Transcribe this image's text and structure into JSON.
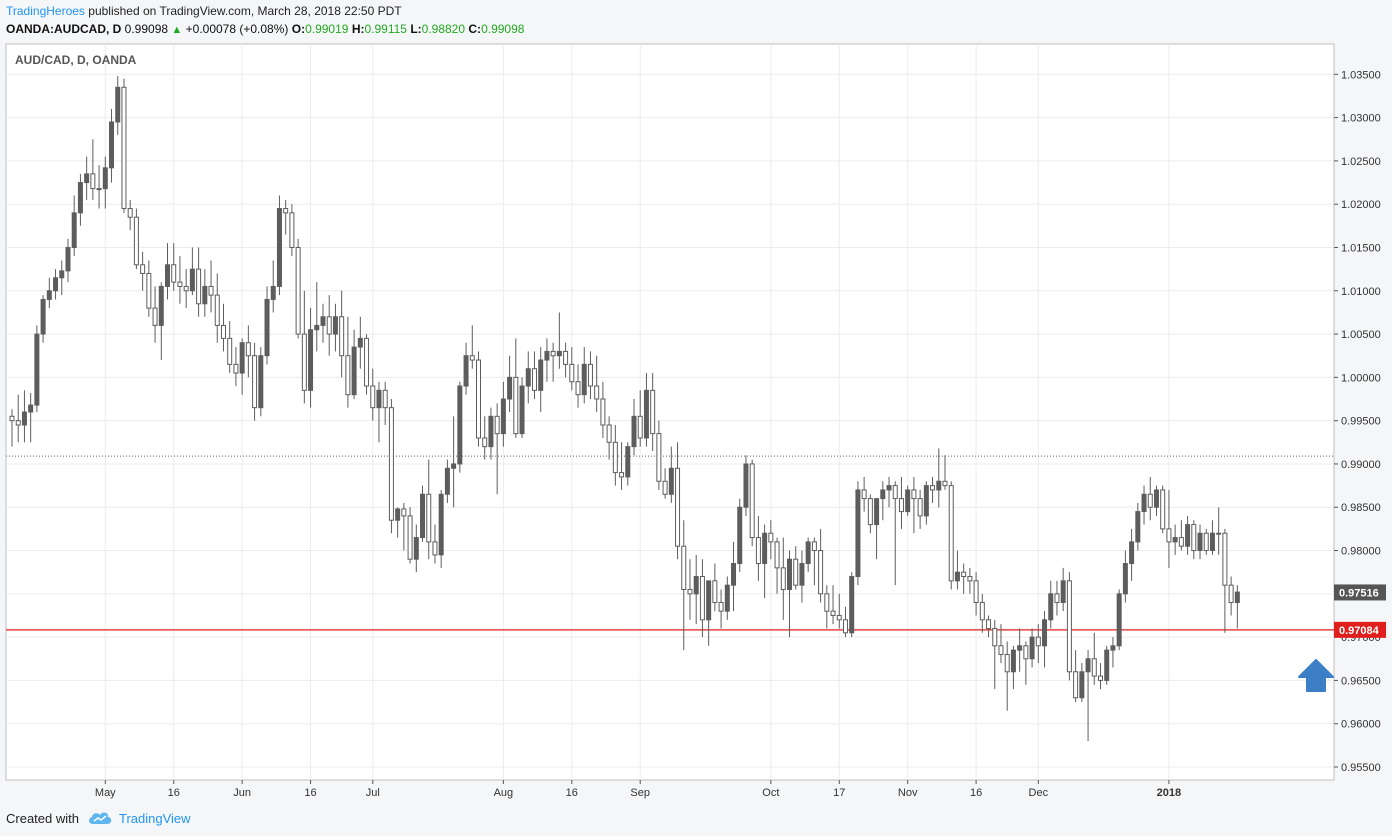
{
  "header": {
    "publisher": "TradingHeroes",
    "published_text": "published on TradingView.com, March 28, 2018 22:50 PDT",
    "symbol": "OANDA:AUDCAD, D",
    "last": "0.99098",
    "change": "+0.00078 (+0.08%)",
    "o_label": "O:",
    "o_value": "0.99019",
    "h_label": "H:",
    "h_value": "0.99115",
    "l_label": "L:",
    "l_value": "0.98820",
    "c_label": "C:",
    "c_value": "0.99098"
  },
  "footer": {
    "created_with": "Created with",
    "brand": "TradingView"
  },
  "colors": {
    "candle": "#5d5d5d",
    "red_line": "#e01e1e",
    "arrow": "#3d7fc6",
    "brand": "#2196f3"
  },
  "chart_data": {
    "type": "candlestick",
    "title": "AUD/CAD, D, OANDA",
    "ylim": [
      0.9535,
      1.0385
    ],
    "y_ticks": [
      "1.03500",
      "1.03000",
      "1.02500",
      "1.02000",
      "1.01500",
      "1.01000",
      "1.00500",
      "1.00000",
      "0.99500",
      "0.99000",
      "0.98500",
      "0.98000",
      "0.97500",
      "0.97000",
      "0.96500",
      "0.96000",
      "0.95500"
    ],
    "x_labels": [
      {
        "label": "May",
        "index": 15
      },
      {
        "label": "16",
        "index": 26
      },
      {
        "label": "Jun",
        "index": 37
      },
      {
        "label": "16",
        "index": 48
      },
      {
        "label": "Jul",
        "index": 58
      },
      {
        "label": "Aug",
        "index": 79
      },
      {
        "label": "16",
        "index": 90
      },
      {
        "label": "Sep",
        "index": 101
      },
      {
        "label": "Oct",
        "index": 122
      },
      {
        "label": "17",
        "index": 133
      },
      {
        "label": "Nov",
        "index": 144
      },
      {
        "label": "16",
        "index": 155
      },
      {
        "label": "Dec",
        "index": 165
      },
      {
        "label": "2018",
        "index": 186
      }
    ],
    "current_price": {
      "label": "0.97516",
      "value": 0.97516
    },
    "horizontal_level": {
      "label": "0.97084",
      "value": 0.97084
    },
    "dotted_level": 0.9909,
    "arrow_annotation": "up-arrow",
    "candles": [
      [
        0.9955,
        0.9963,
        0.992,
        0.995
      ],
      [
        0.995,
        0.998,
        0.9925,
        0.9945
      ],
      [
        0.9945,
        0.9985,
        0.9925,
        0.996
      ],
      [
        0.996,
        0.9982,
        0.9925,
        0.9968
      ],
      [
        0.9968,
        1.006,
        0.996,
        1.005
      ],
      [
        1.005,
        1.0095,
        1.004,
        1.009
      ],
      [
        1.009,
        1.0115,
        1.008,
        1.01
      ],
      [
        1.01,
        1.0125,
        1.009,
        1.0115
      ],
      [
        1.0115,
        1.0135,
        1.0095,
        1.0123
      ],
      [
        1.0123,
        1.016,
        1.011,
        1.015
      ],
      [
        1.015,
        1.021,
        1.014,
        1.019
      ],
      [
        1.019,
        1.0235,
        1.0175,
        1.0225
      ],
      [
        1.0225,
        1.0255,
        1.0205,
        1.0235
      ],
      [
        1.0235,
        1.0275,
        1.0205,
        1.0218
      ],
      [
        1.0218,
        1.0245,
        1.0195,
        1.0218
      ],
      [
        1.0218,
        1.0255,
        1.0195,
        1.0242
      ],
      [
        1.0242,
        1.031,
        1.0225,
        1.0295
      ],
      [
        1.0295,
        1.0348,
        1.028,
        1.0335
      ],
      [
        1.0335,
        1.0345,
        1.019,
        1.0195
      ],
      [
        1.0195,
        1.0205,
        1.017,
        1.0185
      ],
      [
        1.0185,
        1.0195,
        1.0125,
        1.013
      ],
      [
        1.013,
        1.0145,
        1.01,
        1.012
      ],
      [
        1.012,
        1.0135,
        1.007,
        1.008
      ],
      [
        1.008,
        1.0105,
        1.004,
        1.006
      ],
      [
        1.006,
        1.011,
        1.002,
        1.0105
      ],
      [
        1.0105,
        1.0155,
        1.009,
        1.013
      ],
      [
        1.013,
        1.0155,
        1.01,
        1.011
      ],
      [
        1.011,
        1.014,
        1.0085,
        1.0105
      ],
      [
        1.0105,
        1.0125,
        1.008,
        1.01
      ],
      [
        1.01,
        1.015,
        1.0095,
        1.0125
      ],
      [
        1.0125,
        1.015,
        1.007,
        1.0085
      ],
      [
        1.0085,
        1.0125,
        1.007,
        1.0105
      ],
      [
        1.0105,
        1.0135,
        1.0075,
        1.0095
      ],
      [
        1.0095,
        1.012,
        1.004,
        1.006
      ],
      [
        1.006,
        1.0085,
        1.003,
        1.0045
      ],
      [
        1.0045,
        1.0065,
        1.0005,
        1.0015
      ],
      [
        1.0015,
        1.0035,
        0.999,
        1.0005
      ],
      [
        1.0005,
        1.0045,
        0.998,
        1.004
      ],
      [
        1.004,
        1.006,
        1.0,
        1.0025
      ],
      [
        1.0025,
        1.004,
        0.995,
        0.9965
      ],
      [
        0.9965,
        1.0035,
        0.9955,
        1.0025
      ],
      [
        1.0025,
        1.0105,
        1.0015,
        1.009
      ],
      [
        1.009,
        1.0135,
        1.0075,
        1.0105
      ],
      [
        1.0105,
        1.021,
        1.0095,
        1.0195
      ],
      [
        1.0195,
        1.0205,
        1.0165,
        1.019
      ],
      [
        1.019,
        1.02,
        1.014,
        1.015
      ],
      [
        1.015,
        1.016,
        1.0045,
        1.005
      ],
      [
        1.005,
        1.01,
        0.997,
        0.9985
      ],
      [
        0.9985,
        1.008,
        0.9965,
        1.0055
      ],
      [
        1.0055,
        1.011,
        1.003,
        1.006
      ],
      [
        1.006,
        1.0085,
        1.004,
        1.007
      ],
      [
        1.007,
        1.0095,
        1.0025,
        1.005
      ],
      [
        1.005,
        1.0085,
        1.003,
        1.007
      ],
      [
        1.007,
        1.01,
        1.0,
        1.0025
      ],
      [
        1.0025,
        1.007,
        0.9965,
        0.998
      ],
      [
        0.998,
        1.0055,
        0.9975,
        1.0035
      ],
      [
        1.0035,
        1.007,
        1.001,
        1.0045
      ],
      [
        1.0045,
        1.005,
        0.998,
        0.999
      ],
      [
        0.999,
        1.001,
        0.995,
        0.9965
      ],
      [
        0.9965,
        0.9995,
        0.9925,
        0.9985
      ],
      [
        0.9985,
        0.9995,
        0.9945,
        0.9965
      ],
      [
        0.9965,
        0.9975,
        0.982,
        0.9835
      ],
      [
        0.9835,
        0.985,
        0.9815,
        0.9848
      ],
      [
        0.9848,
        0.9855,
        0.98,
        0.984
      ],
      [
        0.984,
        0.985,
        0.9785,
        0.979
      ],
      [
        0.979,
        0.983,
        0.9775,
        0.9815
      ],
      [
        0.9815,
        0.9875,
        0.981,
        0.9865
      ],
      [
        0.9865,
        0.9905,
        0.979,
        0.981
      ],
      [
        0.981,
        0.983,
        0.9785,
        0.9795
      ],
      [
        0.9795,
        0.987,
        0.978,
        0.9865
      ],
      [
        0.9865,
        0.9905,
        0.9855,
        0.9895
      ],
      [
        0.9895,
        0.9955,
        0.985,
        0.99
      ],
      [
        0.99,
        0.9995,
        0.989,
        0.999
      ],
      [
        0.999,
        1.004,
        0.998,
        1.0025
      ],
      [
        1.0025,
        1.006,
        1.001,
        1.002
      ],
      [
        1.002,
        1.003,
        0.992,
        0.993
      ],
      [
        0.993,
        0.9955,
        0.9905,
        0.992
      ],
      [
        0.992,
        0.9965,
        0.9905,
        0.9955
      ],
      [
        0.9955,
        0.997,
        0.9865,
        0.9935
      ],
      [
        0.9935,
        0.9995,
        0.992,
        0.9975
      ],
      [
        0.9975,
        1.0025,
        0.996,
        1.0
      ],
      [
        1.0,
        1.0045,
        0.993,
        0.9935
      ],
      [
        0.9935,
        1.0,
        0.993,
        0.999
      ],
      [
        0.999,
        1.003,
        0.997,
        1.001
      ],
      [
        1.001,
        1.003,
        0.9975,
        0.9985
      ],
      [
        0.9985,
        1.0035,
        0.996,
        1.002
      ],
      [
        1.002,
        1.0045,
        0.9995,
        1.003
      ],
      [
        1.003,
        1.004,
        0.9995,
        1.0025
      ],
      [
        1.0025,
        1.0075,
        1.001,
        1.003
      ],
      [
        1.003,
        1.004,
        1.0,
        1.0015
      ],
      [
        1.0015,
        1.0035,
        0.9985,
        0.9995
      ],
      [
        0.9995,
        1.0015,
        0.9965,
        0.998
      ],
      [
        0.998,
        1.0035,
        0.997,
        1.0015
      ],
      [
        1.0015,
        1.003,
        0.9975,
        0.999
      ],
      [
        0.999,
        1.0025,
        0.996,
        0.9975
      ],
      [
        0.9975,
        0.9995,
        0.993,
        0.9945
      ],
      [
        0.9945,
        0.9955,
        0.9905,
        0.9925
      ],
      [
        0.9925,
        0.9945,
        0.9875,
        0.989
      ],
      [
        0.989,
        0.9925,
        0.987,
        0.9885
      ],
      [
        0.9885,
        0.9925,
        0.9875,
        0.992
      ],
      [
        0.992,
        0.9975,
        0.991,
        0.9955
      ],
      [
        0.9955,
        0.9985,
        0.992,
        0.993
      ],
      [
        0.993,
        1.0005,
        0.992,
        0.9985
      ],
      [
        0.9985,
        1.0005,
        0.9915,
        0.9935
      ],
      [
        0.9935,
        0.995,
        0.987,
        0.988
      ],
      [
        0.988,
        0.9895,
        0.986,
        0.9865
      ],
      [
        0.9865,
        0.992,
        0.9855,
        0.9895
      ],
      [
        0.9895,
        0.9925,
        0.979,
        0.9805
      ],
      [
        0.9805,
        0.9835,
        0.9685,
        0.9755
      ],
      [
        0.9755,
        0.979,
        0.972,
        0.975
      ],
      [
        0.975,
        0.9795,
        0.9715,
        0.977
      ],
      [
        0.977,
        0.979,
        0.97,
        0.972
      ],
      [
        0.972,
        0.976,
        0.969,
        0.9765
      ],
      [
        0.9765,
        0.9785,
        0.973,
        0.974
      ],
      [
        0.974,
        0.9755,
        0.971,
        0.973
      ],
      [
        0.973,
        0.977,
        0.972,
        0.976
      ],
      [
        0.976,
        0.981,
        0.973,
        0.9785
      ],
      [
        0.9785,
        0.986,
        0.9775,
        0.985
      ],
      [
        0.985,
        0.991,
        0.984,
        0.99
      ],
      [
        0.99,
        0.9905,
        0.9805,
        0.9815
      ],
      [
        0.9815,
        0.984,
        0.9765,
        0.9785
      ],
      [
        0.9785,
        0.983,
        0.9745,
        0.982
      ],
      [
        0.982,
        0.9835,
        0.979,
        0.981
      ],
      [
        0.981,
        0.9815,
        0.975,
        0.978
      ],
      [
        0.978,
        0.9815,
        0.972,
        0.9755
      ],
      [
        0.9755,
        0.98,
        0.97,
        0.979
      ],
      [
        0.979,
        0.9805,
        0.9755,
        0.976
      ],
      [
        0.976,
        0.98,
        0.974,
        0.9785
      ],
      [
        0.9785,
        0.9815,
        0.9775,
        0.981
      ],
      [
        0.981,
        0.9815,
        0.976,
        0.98
      ],
      [
        0.98,
        0.9825,
        0.974,
        0.975
      ],
      [
        0.975,
        0.976,
        0.971,
        0.973
      ],
      [
        0.973,
        0.976,
        0.9715,
        0.9725
      ],
      [
        0.9725,
        0.975,
        0.971,
        0.972
      ],
      [
        0.972,
        0.9735,
        0.97,
        0.9705
      ],
      [
        0.9705,
        0.9775,
        0.97,
        0.977
      ],
      [
        0.977,
        0.988,
        0.976,
        0.987
      ],
      [
        0.987,
        0.9885,
        0.9845,
        0.986
      ],
      [
        0.986,
        0.9865,
        0.982,
        0.983
      ],
      [
        0.983,
        0.986,
        0.979,
        0.986
      ],
      [
        0.986,
        0.988,
        0.9835,
        0.987
      ],
      [
        0.987,
        0.9885,
        0.985,
        0.9875
      ],
      [
        0.9875,
        0.988,
        0.976,
        0.986
      ],
      [
        0.986,
        0.9885,
        0.9825,
        0.9845
      ],
      [
        0.9845,
        0.9875,
        0.984,
        0.987
      ],
      [
        0.987,
        0.9885,
        0.982,
        0.986
      ],
      [
        0.986,
        0.987,
        0.9825,
        0.984
      ],
      [
        0.984,
        0.988,
        0.983,
        0.9875
      ],
      [
        0.9875,
        0.9885,
        0.9855,
        0.987
      ],
      [
        0.987,
        0.9918,
        0.985,
        0.988
      ],
      [
        0.988,
        0.991,
        0.987,
        0.9875
      ],
      [
        0.9875,
        0.988,
        0.9755,
        0.9765
      ],
      [
        0.9765,
        0.98,
        0.9755,
        0.9775
      ],
      [
        0.9775,
        0.9785,
        0.975,
        0.977
      ],
      [
        0.977,
        0.978,
        0.975,
        0.9765
      ],
      [
        0.9765,
        0.9775,
        0.9725,
        0.974
      ],
      [
        0.974,
        0.975,
        0.9705,
        0.972
      ],
      [
        0.972,
        0.9725,
        0.97,
        0.971
      ],
      [
        0.971,
        0.972,
        0.964,
        0.969
      ],
      [
        0.969,
        0.9715,
        0.967,
        0.968
      ],
      [
        0.968,
        0.9695,
        0.9615,
        0.966
      ],
      [
        0.966,
        0.969,
        0.964,
        0.9685
      ],
      [
        0.9685,
        0.971,
        0.966,
        0.969
      ],
      [
        0.969,
        0.9695,
        0.9645,
        0.9675
      ],
      [
        0.9675,
        0.971,
        0.9665,
        0.97
      ],
      [
        0.97,
        0.9715,
        0.967,
        0.969
      ],
      [
        0.969,
        0.973,
        0.9665,
        0.972
      ],
      [
        0.972,
        0.9765,
        0.971,
        0.975
      ],
      [
        0.975,
        0.9765,
        0.9725,
        0.974
      ],
      [
        0.974,
        0.978,
        0.973,
        0.9765
      ],
      [
        0.9765,
        0.9775,
        0.965,
        0.966
      ],
      [
        0.966,
        0.9685,
        0.9625,
        0.963
      ],
      [
        0.963,
        0.967,
        0.9625,
        0.966
      ],
      [
        0.966,
        0.9685,
        0.958,
        0.9675
      ],
      [
        0.9675,
        0.9705,
        0.9645,
        0.9655
      ],
      [
        0.9655,
        0.967,
        0.964,
        0.965
      ],
      [
        0.965,
        0.969,
        0.9645,
        0.9685
      ],
      [
        0.9685,
        0.97,
        0.9665,
        0.969
      ],
      [
        0.969,
        0.9755,
        0.9685,
        0.975
      ],
      [
        0.975,
        0.98,
        0.974,
        0.9785
      ],
      [
        0.9785,
        0.9825,
        0.9765,
        0.981
      ],
      [
        0.981,
        0.9855,
        0.98,
        0.9845
      ],
      [
        0.9845,
        0.9875,
        0.983,
        0.9865
      ],
      [
        0.9865,
        0.9885,
        0.9835,
        0.985
      ],
      [
        0.985,
        0.9875,
        0.984,
        0.987
      ],
      [
        0.987,
        0.9875,
        0.982,
        0.9825
      ],
      [
        0.9825,
        0.987,
        0.978,
        0.981
      ],
      [
        0.981,
        0.983,
        0.9795,
        0.9815
      ],
      [
        0.9815,
        0.9835,
        0.98,
        0.9805
      ],
      [
        0.9805,
        0.984,
        0.9795,
        0.983
      ],
      [
        0.983,
        0.9835,
        0.979,
        0.98
      ],
      [
        0.98,
        0.983,
        0.979,
        0.982
      ],
      [
        0.982,
        0.9825,
        0.9795,
        0.98
      ],
      [
        0.98,
        0.9835,
        0.9795,
        0.982
      ],
      [
        0.982,
        0.985,
        0.9795,
        0.982
      ],
      [
        0.982,
        0.9825,
        0.9705,
        0.976
      ],
      [
        0.976,
        0.977,
        0.9725,
        0.974
      ],
      [
        0.974,
        0.976,
        0.971,
        0.9752
      ]
    ]
  }
}
